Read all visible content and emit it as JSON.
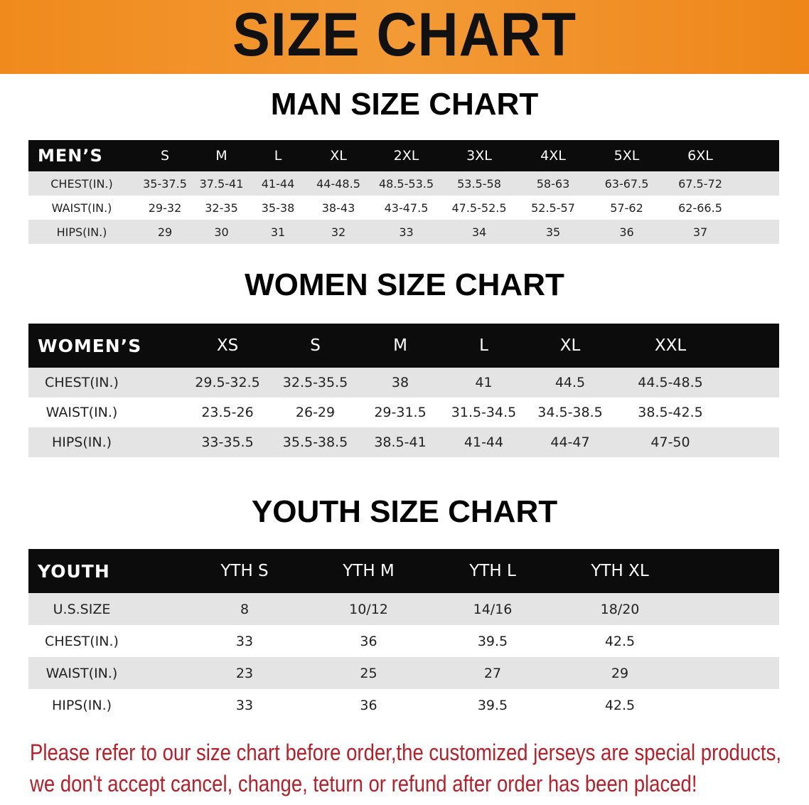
{
  "title": "SIZE CHART",
  "colors": {
    "banner": "#f08a1c",
    "header": "#0c0c0c",
    "stripe": "#e4e4e4",
    "note": "#b5202a"
  },
  "men": {
    "title": "MAN SIZE CHART",
    "header": "MEN’S",
    "sizes": [
      "S",
      "M",
      "L",
      "XL",
      "2XL",
      "3XL",
      "4XL",
      "5XL",
      "6XL"
    ],
    "rows": [
      {
        "label": "CHEST(IN.)",
        "values": [
          "35-37.5",
          "37.5-41",
          "41-44",
          "44-48.5",
          "48.5-53.5",
          "53.5-58",
          "58-63",
          "63-67.5",
          "67.5-72"
        ]
      },
      {
        "label": "WAIST(IN.)",
        "values": [
          "29-32",
          "32-35",
          "35-38",
          "38-43",
          "43-47.5",
          "47.5-52.5",
          "52.5-57",
          "57-62",
          "62-66.5"
        ]
      },
      {
        "label": "HIPS(IN.)",
        "values": [
          "29",
          "30",
          "31",
          "32",
          "33",
          "34",
          "35",
          "36",
          "37"
        ]
      }
    ]
  },
  "women": {
    "title": "WOMEN SIZE CHART",
    "header": "WOMEN’S",
    "sizes": [
      "XS",
      "S",
      "M",
      "L",
      "XL",
      "XXL"
    ],
    "rows": [
      {
        "label": "CHEST(IN.)",
        "values": [
          "29.5-32.5",
          "32.5-35.5",
          "38",
          "41",
          "44.5",
          "44.5-48.5"
        ]
      },
      {
        "label": "WAIST(IN.)",
        "values": [
          "23.5-26",
          "26-29",
          "29-31.5",
          "31.5-34.5",
          "34.5-38.5",
          "38.5-42.5"
        ]
      },
      {
        "label": "HIPS(IN.)",
        "values": [
          "33-35.5",
          "35.5-38.5",
          "38.5-41",
          "41-44",
          "44-47",
          "47-50"
        ]
      }
    ]
  },
  "youth": {
    "title": "YOUTH SIZE CHART",
    "header": "YOUTH",
    "sizes": [
      "YTH S",
      "YTH M",
      "YTH L",
      "YTH XL"
    ],
    "rows": [
      {
        "label": "U.S.SIZE",
        "values": [
          "8",
          "10/12",
          "14/16",
          "18/20"
        ]
      },
      {
        "label": "CHEST(IN.)",
        "values": [
          "33",
          "36",
          "39.5",
          "42.5"
        ]
      },
      {
        "label": "WAIST(IN.)",
        "values": [
          "23",
          "25",
          "27",
          "29"
        ]
      },
      {
        "label": "HIPS(IN.)",
        "values": [
          "33",
          "36",
          "39.5",
          "42.5"
        ]
      }
    ]
  },
  "note": {
    "line1": "Please refer to our size chart before order,the customized jerseys are special products,",
    "line2": "we don't accept cancel, change, teturn or refund after order has been placed!"
  }
}
